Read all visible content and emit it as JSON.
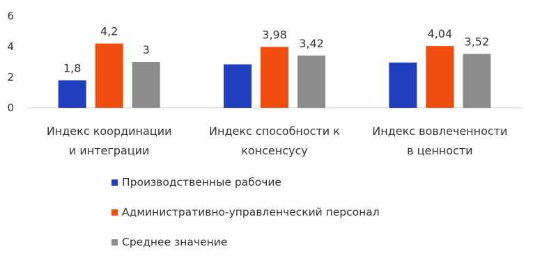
{
  "chart_data": {
    "type": "bar",
    "categories": [
      [
        "Индекс координации",
        "и интеграции"
      ],
      [
        "Индекс способности к",
        "консенсусу"
      ],
      [
        "Индекс вовлеченности",
        "в ценности"
      ]
    ],
    "series": [
      {
        "name": "Производственные рабочие",
        "color": "#1f3fbf",
        "values": [
          1.8,
          2.84,
          2.96
        ],
        "labels": [
          "1,8",
          "",
          ""
        ]
      },
      {
        "name": "Административно-управленческий персонал",
        "color": "#f04d0e",
        "values": [
          4.2,
          3.98,
          4.04
        ],
        "labels": [
          "4,2",
          "3,98",
          "4,04"
        ]
      },
      {
        "name": "Среднее значение",
        "color": "#8c8c8c",
        "values": [
          3,
          3.42,
          3.52
        ],
        "labels": [
          "3",
          "3,42",
          "3,52"
        ]
      }
    ],
    "y_ticks": [
      "0",
      "2",
      "4",
      "6"
    ],
    "ylim": [
      0,
      6
    ],
    "grid": false,
    "legend_position": "bottom"
  }
}
